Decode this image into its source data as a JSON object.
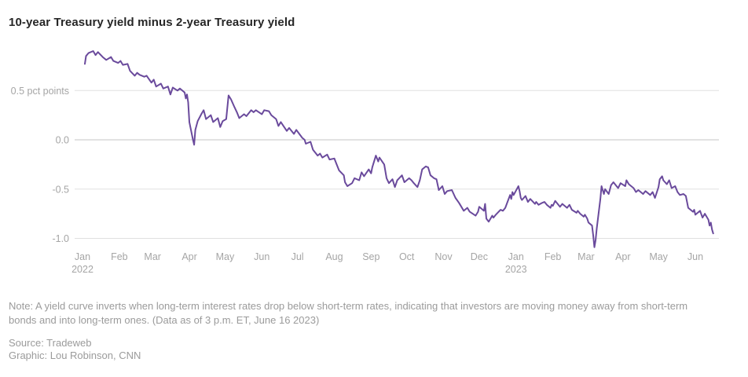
{
  "title": "10-year Treasury yield minus 2-year Treasury yield",
  "note": "Note: A yield curve inverts when long-term interest rates drop below short-term rates, indicating that investors are moving money away from short-term bonds and into long-term ones. (Data as of 3 p.m. ET, June 16 2023)",
  "source_line": "Source: Tradeweb",
  "credit_line": "Graphic: Lou Robinson, CNN",
  "colors": {
    "line": "#6a4a9c",
    "grid": "#e0e0e0",
    "grid_zero": "#c4c4c4",
    "axis_text": "#a5a5a5",
    "title_text": "#262626",
    "note_text": "#9b9b9b"
  },
  "chart_data": {
    "type": "line",
    "title": "10-year Treasury yield minus 2-year Treasury yield",
    "xlabel": "",
    "ylabel": "pct points",
    "ylim": [
      -1.2,
      1.0
    ],
    "grid": "horizontal-only",
    "legend": "none",
    "y_ticks": [
      {
        "value": 0.5,
        "label": "0.5 pct points"
      },
      {
        "value": 0.0,
        "label": "0.0"
      },
      {
        "value": -0.5,
        "label": "-0.5"
      },
      {
        "value": -1.0,
        "label": "-1.0"
      }
    ],
    "x_ticks": [
      {
        "date": "2022-01-01",
        "label": "Jan",
        "year": "2022"
      },
      {
        "date": "2022-02-01",
        "label": "Feb"
      },
      {
        "date": "2022-03-01",
        "label": "Mar"
      },
      {
        "date": "2022-04-01",
        "label": "Apr"
      },
      {
        "date": "2022-05-01",
        "label": "May"
      },
      {
        "date": "2022-06-01",
        "label": "Jun"
      },
      {
        "date": "2022-07-01",
        "label": "Jul"
      },
      {
        "date": "2022-08-01",
        "label": "Aug"
      },
      {
        "date": "2022-09-01",
        "label": "Sep"
      },
      {
        "date": "2022-10-01",
        "label": "Oct"
      },
      {
        "date": "2022-11-01",
        "label": "Nov"
      },
      {
        "date": "2022-12-01",
        "label": "Dec"
      },
      {
        "date": "2023-01-01",
        "label": "Jan",
        "year": "2023"
      },
      {
        "date": "2023-02-01",
        "label": "Feb"
      },
      {
        "date": "2023-03-01",
        "label": "Mar"
      },
      {
        "date": "2023-04-01",
        "label": "Apr"
      },
      {
        "date": "2023-05-01",
        "label": "May"
      },
      {
        "date": "2023-06-01",
        "label": "Jun"
      }
    ],
    "series": [
      {
        "name": "10-year Treasury yield minus 2-year Treasury yield",
        "unit": "percentage points",
        "points": [
          [
            "2022-01-03",
            0.77
          ],
          [
            "2022-01-04",
            0.85
          ],
          [
            "2022-01-06",
            0.88
          ],
          [
            "2022-01-10",
            0.9
          ],
          [
            "2022-01-12",
            0.86
          ],
          [
            "2022-01-14",
            0.89
          ],
          [
            "2022-01-18",
            0.84
          ],
          [
            "2022-01-21",
            0.81
          ],
          [
            "2022-01-25",
            0.84
          ],
          [
            "2022-01-27",
            0.8
          ],
          [
            "2022-01-31",
            0.78
          ],
          [
            "2022-02-02",
            0.8
          ],
          [
            "2022-02-04",
            0.76
          ],
          [
            "2022-02-08",
            0.77
          ],
          [
            "2022-02-10",
            0.7
          ],
          [
            "2022-02-14",
            0.65
          ],
          [
            "2022-02-16",
            0.68
          ],
          [
            "2022-02-18",
            0.66
          ],
          [
            "2022-02-22",
            0.64
          ],
          [
            "2022-02-24",
            0.65
          ],
          [
            "2022-02-28",
            0.58
          ],
          [
            "2022-03-02",
            0.61
          ],
          [
            "2022-03-04",
            0.54
          ],
          [
            "2022-03-08",
            0.57
          ],
          [
            "2022-03-10",
            0.52
          ],
          [
            "2022-03-14",
            0.54
          ],
          [
            "2022-03-16",
            0.46
          ],
          [
            "2022-03-18",
            0.53
          ],
          [
            "2022-03-22",
            0.5
          ],
          [
            "2022-03-24",
            0.52
          ],
          [
            "2022-03-28",
            0.48
          ],
          [
            "2022-03-29",
            0.42
          ],
          [
            "2022-03-30",
            0.46
          ],
          [
            "2022-03-31",
            0.38
          ],
          [
            "2022-04-01",
            0.18
          ],
          [
            "2022-04-04",
            0.0
          ],
          [
            "2022-04-05",
            -0.05
          ],
          [
            "2022-04-06",
            0.1
          ],
          [
            "2022-04-08",
            0.19
          ],
          [
            "2022-04-11",
            0.26
          ],
          [
            "2022-04-13",
            0.3
          ],
          [
            "2022-04-15",
            0.21
          ],
          [
            "2022-04-19",
            0.25
          ],
          [
            "2022-04-21",
            0.18
          ],
          [
            "2022-04-25",
            0.22
          ],
          [
            "2022-04-27",
            0.13
          ],
          [
            "2022-04-29",
            0.19
          ],
          [
            "2022-05-02",
            0.21
          ],
          [
            "2022-05-04",
            0.45
          ],
          [
            "2022-05-06",
            0.41
          ],
          [
            "2022-05-09",
            0.33
          ],
          [
            "2022-05-11",
            0.28
          ],
          [
            "2022-05-13",
            0.22
          ],
          [
            "2022-05-17",
            0.26
          ],
          [
            "2022-05-19",
            0.24
          ],
          [
            "2022-05-23",
            0.3
          ],
          [
            "2022-05-25",
            0.28
          ],
          [
            "2022-05-27",
            0.3
          ],
          [
            "2022-06-01",
            0.26
          ],
          [
            "2022-06-03",
            0.3
          ],
          [
            "2022-06-07",
            0.29
          ],
          [
            "2022-06-09",
            0.25
          ],
          [
            "2022-06-13",
            0.21
          ],
          [
            "2022-06-15",
            0.14
          ],
          [
            "2022-06-17",
            0.18
          ],
          [
            "2022-06-22",
            0.09
          ],
          [
            "2022-06-24",
            0.12
          ],
          [
            "2022-06-28",
            0.06
          ],
          [
            "2022-06-30",
            0.1
          ],
          [
            "2022-07-05",
            0.02
          ],
          [
            "2022-07-07",
            0.0
          ],
          [
            "2022-07-08",
            -0.04
          ],
          [
            "2022-07-12",
            -0.02
          ],
          [
            "2022-07-14",
            -0.1
          ],
          [
            "2022-07-18",
            -0.16
          ],
          [
            "2022-07-20",
            -0.14
          ],
          [
            "2022-07-22",
            -0.18
          ],
          [
            "2022-07-26",
            -0.15
          ],
          [
            "2022-07-28",
            -0.2
          ],
          [
            "2022-08-01",
            -0.19
          ],
          [
            "2022-08-03",
            -0.25
          ],
          [
            "2022-08-05",
            -0.31
          ],
          [
            "2022-08-09",
            -0.36
          ],
          [
            "2022-08-10",
            -0.43
          ],
          [
            "2022-08-12",
            -0.47
          ],
          [
            "2022-08-16",
            -0.44
          ],
          [
            "2022-08-18",
            -0.39
          ],
          [
            "2022-08-22",
            -0.41
          ],
          [
            "2022-08-24",
            -0.33
          ],
          [
            "2022-08-26",
            -0.37
          ],
          [
            "2022-08-30",
            -0.3
          ],
          [
            "2022-09-01",
            -0.34
          ],
          [
            "2022-09-02",
            -0.28
          ],
          [
            "2022-09-05",
            -0.16
          ],
          [
            "2022-09-07",
            -0.22
          ],
          [
            "2022-09-08",
            -0.18
          ],
          [
            "2022-09-12",
            -0.25
          ],
          [
            "2022-09-14",
            -0.39
          ],
          [
            "2022-09-16",
            -0.44
          ],
          [
            "2022-09-19",
            -0.4
          ],
          [
            "2022-09-21",
            -0.48
          ],
          [
            "2022-09-23",
            -0.41
          ],
          [
            "2022-09-27",
            -0.36
          ],
          [
            "2022-09-29",
            -0.43
          ],
          [
            "2022-10-03",
            -0.39
          ],
          [
            "2022-10-05",
            -0.41
          ],
          [
            "2022-10-07",
            -0.44
          ],
          [
            "2022-10-10",
            -0.48
          ],
          [
            "2022-10-12",
            -0.41
          ],
          [
            "2022-10-14",
            -0.3
          ],
          [
            "2022-10-17",
            -0.27
          ],
          [
            "2022-10-19",
            -0.28
          ],
          [
            "2022-10-21",
            -0.36
          ],
          [
            "2022-10-24",
            -0.39
          ],
          [
            "2022-10-26",
            -0.4
          ],
          [
            "2022-10-28",
            -0.51
          ],
          [
            "2022-10-31",
            -0.47
          ],
          [
            "2022-11-02",
            -0.55
          ],
          [
            "2022-11-04",
            -0.52
          ],
          [
            "2022-11-08",
            -0.51
          ],
          [
            "2022-11-11",
            -0.59
          ],
          [
            "2022-11-14",
            -0.64
          ],
          [
            "2022-11-16",
            -0.68
          ],
          [
            "2022-11-18",
            -0.72
          ],
          [
            "2022-11-21",
            -0.69
          ],
          [
            "2022-11-23",
            -0.73
          ],
          [
            "2022-11-28",
            -0.77
          ],
          [
            "2022-11-30",
            -0.73
          ],
          [
            "2022-12-01",
            -0.68
          ],
          [
            "2022-12-05",
            -0.72
          ],
          [
            "2022-12-06",
            -0.65
          ],
          [
            "2022-12-07",
            -0.8
          ],
          [
            "2022-12-09",
            -0.83
          ],
          [
            "2022-12-12",
            -0.77
          ],
          [
            "2022-12-13",
            -0.79
          ],
          [
            "2022-12-15",
            -0.76
          ],
          [
            "2022-12-19",
            -0.71
          ],
          [
            "2022-12-21",
            -0.72
          ],
          [
            "2022-12-23",
            -0.69
          ],
          [
            "2022-12-27",
            -0.56
          ],
          [
            "2022-12-28",
            -0.6
          ],
          [
            "2022-12-29",
            -0.53
          ],
          [
            "2022-12-30",
            -0.56
          ],
          [
            "2023-01-03",
            -0.47
          ],
          [
            "2023-01-04",
            -0.52
          ],
          [
            "2023-01-05",
            -0.59
          ],
          [
            "2023-01-06",
            -0.61
          ],
          [
            "2023-01-09",
            -0.57
          ],
          [
            "2023-01-11",
            -0.63
          ],
          [
            "2023-01-13",
            -0.6
          ],
          [
            "2023-01-17",
            -0.65
          ],
          [
            "2023-01-18",
            -0.63
          ],
          [
            "2023-01-20",
            -0.66
          ],
          [
            "2023-01-23",
            -0.64
          ],
          [
            "2023-01-25",
            -0.63
          ],
          [
            "2023-01-27",
            -0.66
          ],
          [
            "2023-01-30",
            -0.69
          ],
          [
            "2023-01-31",
            -0.66
          ],
          [
            "2023-02-01",
            -0.67
          ],
          [
            "2023-02-03",
            -0.62
          ],
          [
            "2023-02-07",
            -0.68
          ],
          [
            "2023-02-09",
            -0.65
          ],
          [
            "2023-02-13",
            -0.69
          ],
          [
            "2023-02-15",
            -0.66
          ],
          [
            "2023-02-17",
            -0.71
          ],
          [
            "2023-02-21",
            -0.74
          ],
          [
            "2023-02-22",
            -0.72
          ],
          [
            "2023-02-24",
            -0.75
          ],
          [
            "2023-02-27",
            -0.78
          ],
          [
            "2023-02-28",
            -0.76
          ],
          [
            "2023-03-02",
            -0.8
          ],
          [
            "2023-03-03",
            -0.84
          ],
          [
            "2023-03-06",
            -0.87
          ],
          [
            "2023-03-07",
            -0.97
          ],
          [
            "2023-03-08",
            -1.09
          ],
          [
            "2023-03-09",
            -1.02
          ],
          [
            "2023-03-10",
            -0.9
          ],
          [
            "2023-03-13",
            -0.6
          ],
          [
            "2023-03-14",
            -0.47
          ],
          [
            "2023-03-16",
            -0.55
          ],
          [
            "2023-03-17",
            -0.5
          ],
          [
            "2023-03-20",
            -0.55
          ],
          [
            "2023-03-22",
            -0.46
          ],
          [
            "2023-03-24",
            -0.43
          ],
          [
            "2023-03-28",
            -0.49
          ],
          [
            "2023-03-30",
            -0.44
          ],
          [
            "2023-04-03",
            -0.47
          ],
          [
            "2023-04-04",
            -0.41
          ],
          [
            "2023-04-06",
            -0.45
          ],
          [
            "2023-04-10",
            -0.49
          ],
          [
            "2023-04-12",
            -0.53
          ],
          [
            "2023-04-14",
            -0.51
          ],
          [
            "2023-04-18",
            -0.55
          ],
          [
            "2023-04-20",
            -0.52
          ],
          [
            "2023-04-24",
            -0.56
          ],
          [
            "2023-04-26",
            -0.53
          ],
          [
            "2023-04-28",
            -0.59
          ],
          [
            "2023-05-01",
            -0.48
          ],
          [
            "2023-05-02",
            -0.4
          ],
          [
            "2023-05-04",
            -0.37
          ],
          [
            "2023-05-05",
            -0.41
          ],
          [
            "2023-05-08",
            -0.45
          ],
          [
            "2023-05-10",
            -0.41
          ],
          [
            "2023-05-12",
            -0.49
          ],
          [
            "2023-05-15",
            -0.47
          ],
          [
            "2023-05-17",
            -0.53
          ],
          [
            "2023-05-19",
            -0.56
          ],
          [
            "2023-05-22",
            -0.55
          ],
          [
            "2023-05-24",
            -0.57
          ],
          [
            "2023-05-26",
            -0.69
          ],
          [
            "2023-05-30",
            -0.73
          ],
          [
            "2023-05-31",
            -0.71
          ],
          [
            "2023-06-01",
            -0.76
          ],
          [
            "2023-06-05",
            -0.72
          ],
          [
            "2023-06-07",
            -0.79
          ],
          [
            "2023-06-09",
            -0.75
          ],
          [
            "2023-06-12",
            -0.81
          ],
          [
            "2023-06-13",
            -0.87
          ],
          [
            "2023-06-14",
            -0.84
          ],
          [
            "2023-06-15",
            -0.91
          ],
          [
            "2023-06-16",
            -0.95
          ]
        ]
      }
    ]
  }
}
